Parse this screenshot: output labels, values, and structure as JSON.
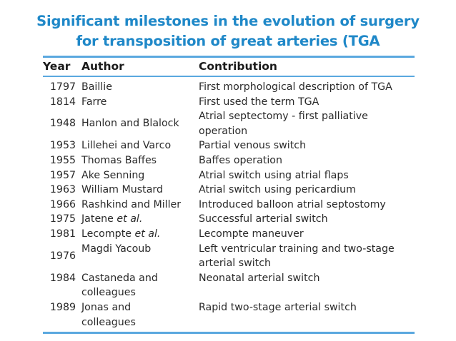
{
  "title": {
    "line1": "Significant milestones in the evolution of surgery",
    "line2": "for transposition of great arteries (TGA"
  },
  "colors": {
    "title": "#1f88c8",
    "rules": "#5aa8df"
  },
  "table": {
    "headers": {
      "year": "Year",
      "author": "Author",
      "contribution": "Contribution"
    },
    "rows": [
      {
        "year": "1797",
        "author": "Baillie",
        "author_suffix": "",
        "contribution": [
          "First morphological description of TGA"
        ]
      },
      {
        "year": "1814",
        "author": "Farre",
        "author_suffix": "",
        "contribution": [
          "First used the term TGA"
        ]
      },
      {
        "year": "1948",
        "author": "Hanlon and Blalock",
        "author_suffix": "",
        "contribution": [
          "Atrial septectomy - first palliative",
          "operation"
        ]
      },
      {
        "year": "1953",
        "author": "Lillehei and Varco",
        "author_suffix": "",
        "contribution": [
          "Partial venous switch"
        ]
      },
      {
        "year": "1955",
        "author": "Thomas Baffes",
        "author_suffix": "",
        "contribution": [
          "Baffes operation"
        ]
      },
      {
        "year": "1957",
        "author": "Ake Senning",
        "author_suffix": "",
        "contribution": [
          "Atrial switch using atrial flaps"
        ]
      },
      {
        "year": "1963",
        "author": "William Mustard",
        "author_suffix": "",
        "contribution": [
          "Atrial switch using pericardium"
        ]
      },
      {
        "year": "1966",
        "author": "Rashkind and Miller",
        "author_suffix": "",
        "contribution": [
          "Introduced balloon atrial septostomy"
        ]
      },
      {
        "year": "1975",
        "author": "Jatene",
        "author_suffix": "et al.",
        "contribution": [
          "Successful arterial switch"
        ]
      },
      {
        "year": "1981",
        "author": "Lecompte",
        "author_suffix": "et al.",
        "contribution": [
          "Lecompte maneuver"
        ]
      },
      {
        "year": "1976",
        "author": "Magdi Yacoub",
        "author_suffix": "",
        "contribution": [
          "Left ventricular training and two-stage",
          "arterial switch"
        ]
      },
      {
        "year": "1984",
        "author": "Castaneda and",
        "author_line2": "colleagues",
        "author_suffix": "",
        "contribution": [
          "Neonatal arterial switch"
        ]
      },
      {
        "year": "1989",
        "author": "Jonas and",
        "author_line2": "colleagues",
        "author_suffix": "",
        "contribution": [
          "Rapid two-stage arterial switch"
        ]
      }
    ]
  }
}
